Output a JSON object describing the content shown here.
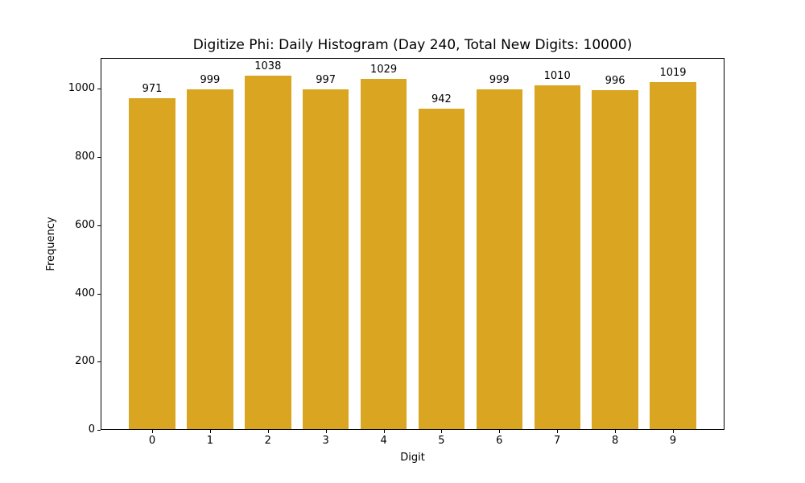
{
  "figure": {
    "background_color": "#ffffff",
    "spine_color": "#000000",
    "text_color": "#000000"
  },
  "chart_data": {
    "type": "bar",
    "title": "Digitize Phi: Daily Histogram (Day 240, Total New Digits: 10000)",
    "xlabel": "Digit",
    "ylabel": "Frequency",
    "categories": [
      "0",
      "1",
      "2",
      "3",
      "4",
      "5",
      "6",
      "7",
      "8",
      "9"
    ],
    "values": [
      971,
      999,
      1038,
      997,
      1029,
      942,
      999,
      1010,
      996,
      1019
    ],
    "bar_labels": [
      "971",
      "999",
      "1038",
      "997",
      "1029",
      "942",
      "999",
      "1010",
      "996",
      "1019"
    ],
    "yticks": [
      0,
      200,
      400,
      600,
      800,
      1000
    ],
    "ytick_labels": [
      "0",
      "200",
      "400",
      "600",
      "800",
      "1000"
    ],
    "ylim": [
      0,
      1090
    ],
    "xlim": [
      -0.89,
      9.89
    ],
    "bar_width": 0.8,
    "bar_color": "#DAA520",
    "grid": false,
    "legend": null
  }
}
